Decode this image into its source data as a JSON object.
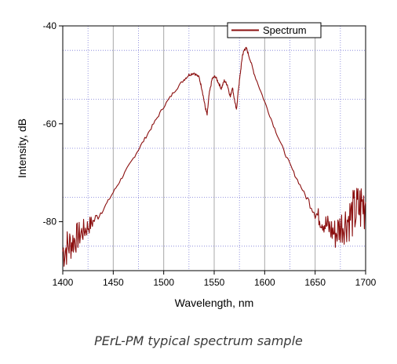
{
  "chart_data": {
    "type": "line",
    "xlabel": "Wavelength, nm",
    "ylabel": "Intensity, dB",
    "xlim": [
      1400,
      1700
    ],
    "ylim": [
      -90,
      -40
    ],
    "x_ticks": [
      "1400",
      "1450",
      "1500",
      "1550",
      "1600",
      "1650",
      "1700"
    ],
    "y_ticks": [
      "-40",
      "-60",
      "-80"
    ],
    "grid": true,
    "legend_position": "top-right",
    "series": [
      {
        "name": "Spectrum",
        "color": "#8b0f0f",
        "x": [
          1400,
          1405,
          1410,
          1415,
          1420,
          1425,
          1430,
          1440,
          1450,
          1460,
          1470,
          1480,
          1490,
          1500,
          1510,
          1520,
          1525,
          1530,
          1535,
          1538,
          1541,
          1543,
          1545,
          1548,
          1551,
          1554,
          1557,
          1560,
          1563,
          1566,
          1568,
          1570,
          1572,
          1574,
          1576,
          1578,
          1580,
          1582,
          1585,
          1590,
          1600,
          1610,
          1620,
          1630,
          1640,
          1650,
          1655,
          1660,
          1665,
          1670,
          1675,
          1680,
          1685,
          1690,
          1695,
          1700
        ],
        "y": [
          -86,
          -85,
          -84,
          -83,
          -82,
          -81,
          -80,
          -77.5,
          -74,
          -70.5,
          -67,
          -63.5,
          -60,
          -56.5,
          -53.5,
          -51,
          -50,
          -49.6,
          -50.5,
          -53,
          -56.5,
          -58.2,
          -54,
          -50.8,
          -50.3,
          -51.5,
          -52.8,
          -51.2,
          -52,
          -54.5,
          -52.5,
          -55,
          -57.2,
          -53,
          -49.5,
          -46,
          -44.8,
          -44.6,
          -46.5,
          -50,
          -55.5,
          -61,
          -66,
          -70.5,
          -74.5,
          -78,
          -79.5,
          -80.5,
          -81.5,
          -82.5,
          -81,
          -80,
          -79,
          -78,
          -77,
          -76
        ]
      }
    ]
  },
  "caption": "PErL-PM typical spectrum sample"
}
